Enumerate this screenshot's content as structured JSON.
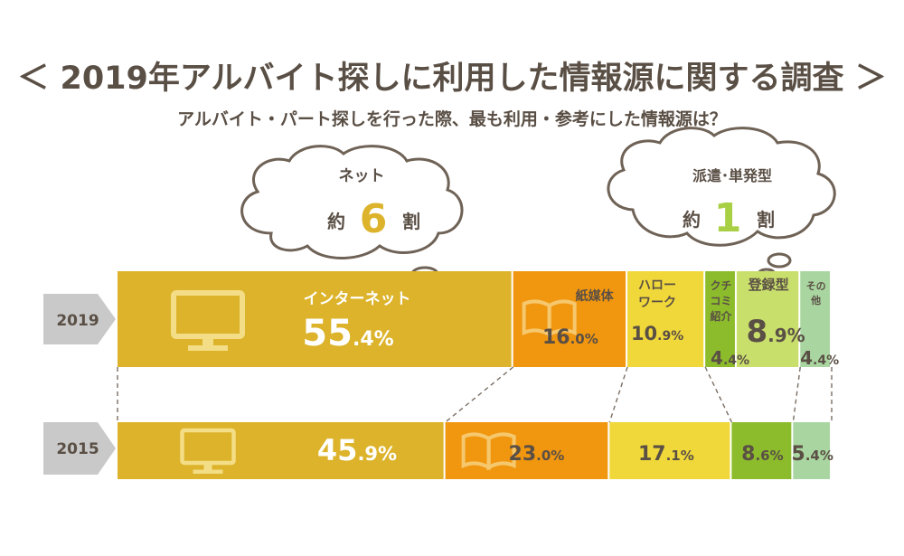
{
  "title": "＜ 2019年アルバイト探しに利用した情報源に関する調査 ＞",
  "subtitle": "アルバイト・パート探しを行った際、最も利用・参考にした情報源は？",
  "callouts": [
    {
      "top": "ネット",
      "prefix": "約",
      "num": "6",
      "suffix": "割",
      "num_color": "#dcb32a"
    },
    {
      "top": "派遣･単発型",
      "prefix": "約",
      "num": "1",
      "suffix": "割",
      "num_color": "#a9cf45"
    }
  ],
  "colors": {
    "internet": "#dcb32a",
    "paper": "#f0960f",
    "hellowork": "#f0d83a",
    "kuchikomi": "#8cbc2c",
    "touroku": "#c8df6c",
    "other": "#a9d6a0",
    "row_label": "#c9c9c9",
    "text": "#5a4f45"
  },
  "chart_data": {
    "type": "stacked-bar",
    "title": "＜ 2019年アルバイト探しに利用した情報源に関する調査 ＞",
    "unit": "%",
    "rows": [
      {
        "year": "2019",
        "segments": [
          {
            "key": "internet",
            "label": "インターネット",
            "value": 55.4,
            "int": "55",
            "dec": ".4%"
          },
          {
            "key": "paper",
            "label": "紙媒体",
            "value": 16.0,
            "int": "16",
            "dec": ".0%"
          },
          {
            "key": "hellowork",
            "label": "ハロー\nワーク",
            "value": 10.9,
            "int": "10",
            "dec": ".9%"
          },
          {
            "key": "kuchikomi",
            "label": "クチ\nコミ\n紹介",
            "value": 4.4,
            "int": "4",
            "dec": ".4%"
          },
          {
            "key": "touroku",
            "label": "登録型",
            "value": 8.9,
            "int": "8",
            "dec": ".9%"
          },
          {
            "key": "other",
            "label": "その\n他",
            "value": 4.4,
            "int": "4",
            "dec": ".4%"
          }
        ]
      },
      {
        "year": "2015",
        "segments": [
          {
            "key": "internet",
            "label": "",
            "value": 45.9,
            "int": "45",
            "dec": ".9%"
          },
          {
            "key": "paper",
            "label": "",
            "value": 23.0,
            "int": "23",
            "dec": ".0%"
          },
          {
            "key": "hellowork",
            "label": "",
            "value": 17.1,
            "int": "17",
            "dec": ".1%"
          },
          {
            "key": "kuchikomi_touroku",
            "label": "",
            "value": 8.6,
            "int": "8",
            "dec": ".6%"
          },
          {
            "key": "other",
            "label": "",
            "value": 5.4,
            "int": "5",
            "dec": ".4%"
          }
        ]
      }
    ]
  }
}
